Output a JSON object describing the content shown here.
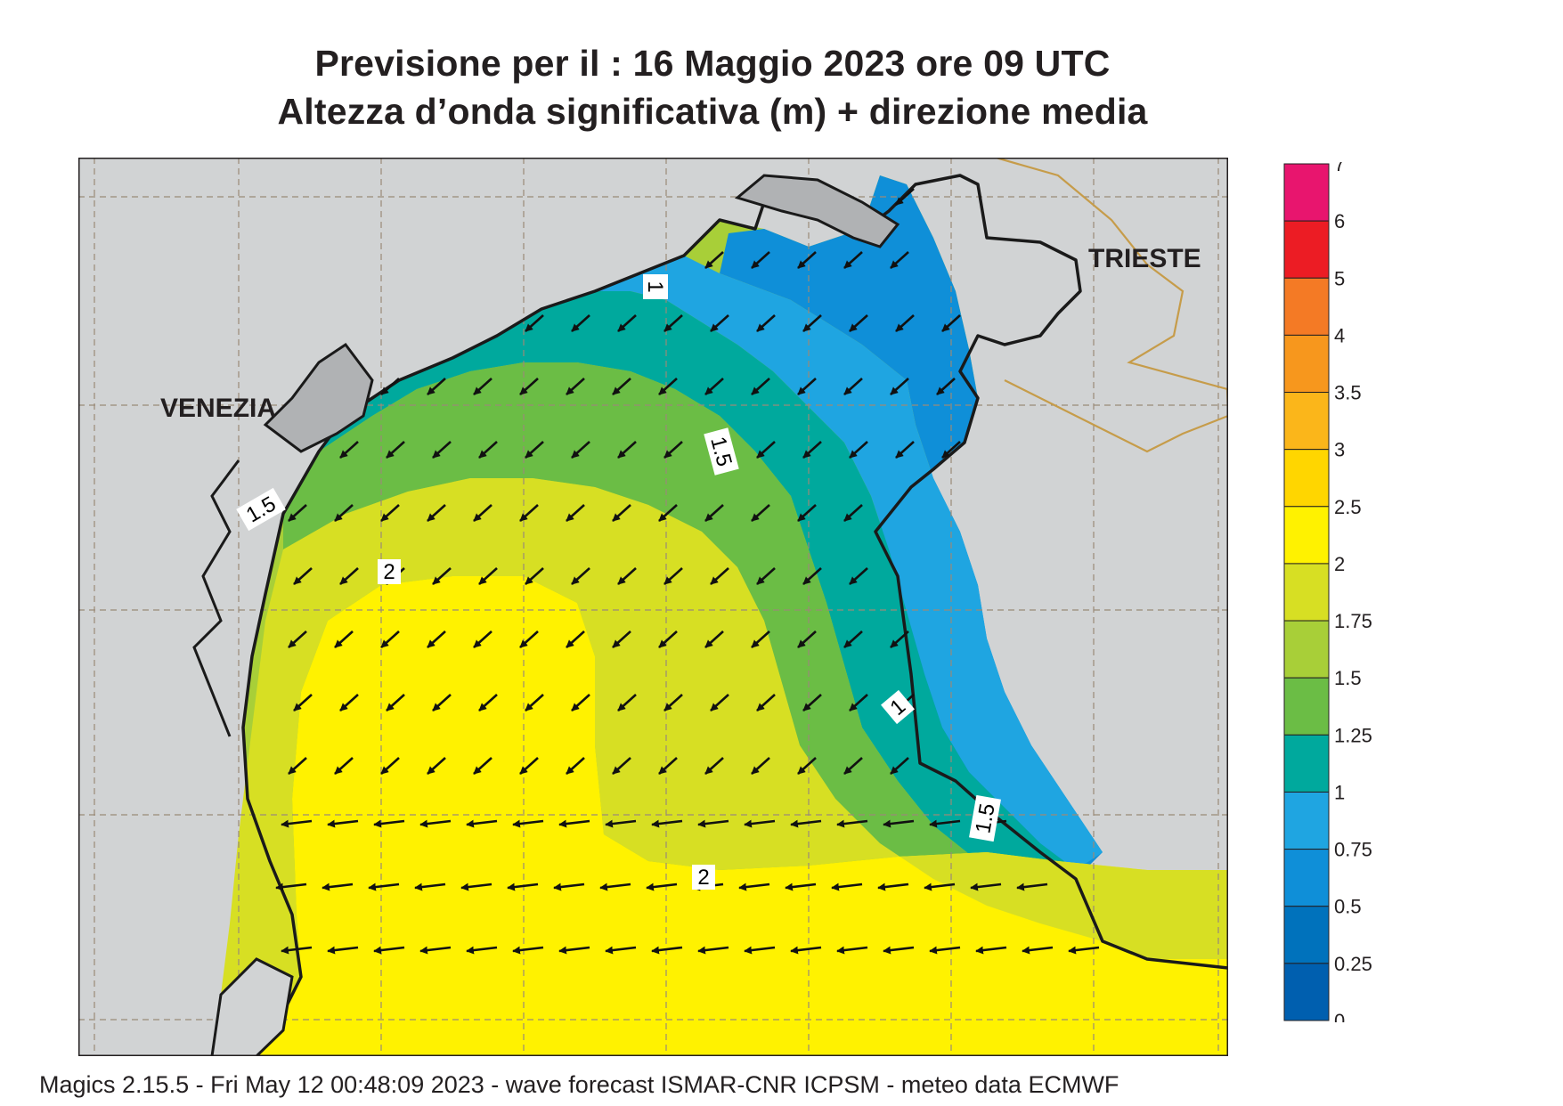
{
  "title": {
    "line1": "Previsione per il  :  16   Maggio  2023   ore 09 UTC",
    "line2": "Altezza d’onda significativa (m) + direzione media"
  },
  "cities": {
    "venezia": "VENEZIA",
    "trieste": "TRIESTE"
  },
  "contour_labels": [
    "1",
    "1.5",
    "1.5",
    "2",
    "1",
    "1.5",
    "2"
  ],
  "legend": {
    "ticks": [
      "7",
      "6",
      "5",
      "4",
      "3.5",
      "3",
      "2.5",
      "2",
      "1.75",
      "1.5",
      "1.25",
      "1",
      "0.75",
      "0.5",
      "0.25",
      "0"
    ],
    "colors": [
      "#e8156e",
      "#ec1c24",
      "#f47a25",
      "#f7971d",
      "#fbb61a",
      "#ffd600",
      "#fff200",
      "#d7df23",
      "#a8cf38",
      "#6bbd45",
      "#00a99d",
      "#1fa5e1",
      "#0f8fd8",
      "#0072bc",
      "#005faf"
    ]
  },
  "wave_direction": "southwest",
  "footer": "Magics 2.15.5 - Fri May 12 00:48:09 2023 - wave forecast  ISMAR-CNR  ICPSM - meteo data   ECMWF"
}
